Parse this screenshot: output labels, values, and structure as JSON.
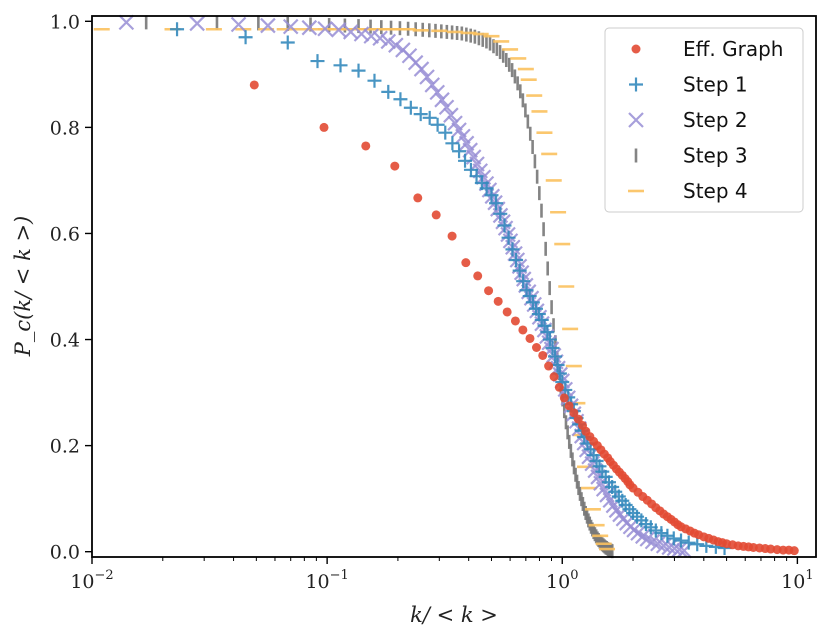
{
  "chart_data": {
    "type": "scatter",
    "title": "",
    "xlabel": "k/ < k >",
    "ylabel": "P_c(k/ < k >)",
    "xscale": "log",
    "xlim": [
      0.01,
      12
    ],
    "ylim": [
      -0.01,
      1.01
    ],
    "x_ticks": [
      0.01,
      0.1,
      1,
      10
    ],
    "x_tick_labels": [
      {
        "base": "10",
        "exp": "−2"
      },
      {
        "base": "10",
        "exp": "−1"
      },
      {
        "base": "10",
        "exp": "0"
      },
      {
        "base": "10",
        "exp": "1"
      }
    ],
    "y_ticks": [
      0.0,
      0.2,
      0.4,
      0.6,
      0.8,
      1.0
    ],
    "y_tick_labels": [
      "0.0",
      "0.2",
      "0.4",
      "0.6",
      "0.8",
      "1.0"
    ],
    "legend_position": "top-right",
    "series": [
      {
        "name": "Eff. Graph",
        "marker": "circle",
        "color": "#e24a33",
        "x": [
          0.049,
          0.097,
          0.146,
          0.194,
          0.243,
          0.291,
          0.34,
          0.389,
          0.437,
          0.486,
          0.534,
          0.583,
          0.632,
          0.68,
          0.729,
          0.777,
          0.826,
          0.875,
          0.923,
          0.972,
          1.02,
          1.07,
          1.12,
          1.17,
          1.22,
          1.26,
          1.31,
          1.36,
          1.41,
          1.46,
          1.51,
          1.56,
          1.6,
          1.65,
          1.7,
          1.75,
          1.8,
          1.85,
          1.9,
          1.94,
          2.0,
          2.1,
          2.2,
          2.3,
          2.4,
          2.5,
          2.6,
          2.7,
          2.8,
          2.9,
          3.0,
          3.1,
          3.2,
          3.35,
          3.5,
          3.65,
          3.8,
          4.0,
          4.2,
          4.4,
          4.6,
          4.8,
          5.0,
          5.3,
          5.6,
          5.9,
          6.2,
          6.5,
          6.9,
          7.3,
          7.7,
          8.2,
          8.7,
          9.2,
          9.7
        ],
        "y": [
          0.88,
          0.8,
          0.765,
          0.727,
          0.667,
          0.635,
          0.595,
          0.545,
          0.52,
          0.492,
          0.472,
          0.452,
          0.435,
          0.418,
          0.402,
          0.385,
          0.37,
          0.35,
          0.33,
          0.31,
          0.29,
          0.275,
          0.262,
          0.25,
          0.238,
          0.227,
          0.217,
          0.208,
          0.2,
          0.192,
          0.184,
          0.177,
          0.17,
          0.163,
          0.156,
          0.15,
          0.144,
          0.138,
          0.132,
          0.126,
          0.12,
          0.112,
          0.104,
          0.097,
          0.09,
          0.083,
          0.077,
          0.071,
          0.066,
          0.061,
          0.056,
          0.051,
          0.047,
          0.043,
          0.039,
          0.035,
          0.032,
          0.028,
          0.025,
          0.022,
          0.019,
          0.017,
          0.015,
          0.013,
          0.011,
          0.01,
          0.009,
          0.008,
          0.007,
          0.006,
          0.005,
          0.004,
          0.003,
          0.003,
          0.002
        ]
      },
      {
        "name": "Step 1",
        "marker": "plus",
        "color": "#348abd",
        "x": [
          0.023,
          0.045,
          0.068,
          0.091,
          0.114,
          0.136,
          0.159,
          0.182,
          0.205,
          0.227,
          0.25,
          0.273,
          0.295,
          0.318,
          0.341,
          0.364,
          0.386,
          0.409,
          0.432,
          0.455,
          0.477,
          0.5,
          0.523,
          0.545,
          0.568,
          0.591,
          0.614,
          0.636,
          0.659,
          0.682,
          0.705,
          0.727,
          0.75,
          0.773,
          0.795,
          0.818,
          0.841,
          0.864,
          0.886,
          0.909,
          0.932,
          0.955,
          0.977,
          1.0,
          1.03,
          1.06,
          1.09,
          1.12,
          1.15,
          1.18,
          1.21,
          1.24,
          1.28,
          1.32,
          1.36,
          1.4,
          1.44,
          1.48,
          1.53,
          1.58,
          1.63,
          1.68,
          1.74,
          1.8,
          1.86,
          1.93,
          2.0,
          2.08,
          2.17,
          2.27,
          2.38,
          2.5,
          2.64,
          2.8,
          2.98,
          3.2,
          3.45,
          3.75,
          4.1,
          4.5,
          4.9
        ],
        "y": [
          0.985,
          0.97,
          0.96,
          0.925,
          0.917,
          0.907,
          0.888,
          0.867,
          0.853,
          0.837,
          0.825,
          0.818,
          0.805,
          0.79,
          0.77,
          0.755,
          0.737,
          0.72,
          0.708,
          0.695,
          0.685,
          0.672,
          0.657,
          0.637,
          0.615,
          0.592,
          0.57,
          0.55,
          0.53,
          0.51,
          0.493,
          0.482,
          0.47,
          0.458,
          0.448,
          0.437,
          0.426,
          0.414,
          0.4,
          0.384,
          0.368,
          0.352,
          0.336,
          0.32,
          0.305,
          0.291,
          0.278,
          0.265,
          0.252,
          0.24,
          0.228,
          0.216,
          0.204,
          0.193,
          0.182,
          0.171,
          0.161,
          0.151,
          0.141,
          0.131,
          0.122,
          0.113,
          0.104,
          0.096,
          0.088,
          0.08,
          0.073,
          0.066,
          0.059,
          0.052,
          0.046,
          0.04,
          0.035,
          0.03,
          0.025,
          0.021,
          0.017,
          0.014,
          0.011,
          0.009,
          0.007
        ]
      },
      {
        "name": "Step 2",
        "marker": "x",
        "color": "#988ed5",
        "x": [
          0.014,
          0.028,
          0.042,
          0.056,
          0.07,
          0.084,
          0.098,
          0.112,
          0.126,
          0.14,
          0.154,
          0.168,
          0.182,
          0.196,
          0.21,
          0.224,
          0.238,
          0.252,
          0.266,
          0.28,
          0.294,
          0.308,
          0.322,
          0.336,
          0.35,
          0.364,
          0.378,
          0.392,
          0.406,
          0.42,
          0.434,
          0.448,
          0.462,
          0.476,
          0.49,
          0.504,
          0.518,
          0.532,
          0.546,
          0.56,
          0.574,
          0.588,
          0.602,
          0.616,
          0.63,
          0.644,
          0.658,
          0.672,
          0.686,
          0.7,
          0.72,
          0.74,
          0.76,
          0.78,
          0.8,
          0.82,
          0.84,
          0.86,
          0.88,
          0.9,
          0.92,
          0.94,
          0.96,
          0.98,
          1.0,
          1.03,
          1.06,
          1.09,
          1.12,
          1.15,
          1.18,
          1.21,
          1.24,
          1.27,
          1.3,
          1.34,
          1.38,
          1.42,
          1.46,
          1.5,
          1.55,
          1.6,
          1.65,
          1.7,
          1.76,
          1.82,
          1.88,
          1.95,
          2.02,
          2.1,
          2.2,
          2.3,
          2.42,
          2.55,
          2.7,
          2.85,
          3.0,
          3.15,
          3.3
        ],
        "y": [
          0.998,
          0.996,
          0.994,
          0.992,
          0.99,
          0.988,
          0.986,
          0.984,
          0.98,
          0.976,
          0.972,
          0.968,
          0.962,
          0.955,
          0.946,
          0.935,
          0.922,
          0.91,
          0.895,
          0.88,
          0.866,
          0.852,
          0.838,
          0.823,
          0.808,
          0.795,
          0.783,
          0.77,
          0.757,
          0.744,
          0.731,
          0.718,
          0.706,
          0.694,
          0.682,
          0.67,
          0.658,
          0.646,
          0.634,
          0.622,
          0.61,
          0.598,
          0.586,
          0.574,
          0.562,
          0.55,
          0.538,
          0.526,
          0.514,
          0.502,
          0.49,
          0.478,
          0.466,
          0.454,
          0.442,
          0.43,
          0.418,
          0.406,
          0.394,
          0.382,
          0.37,
          0.358,
          0.346,
          0.334,
          0.322,
          0.306,
          0.29,
          0.275,
          0.26,
          0.246,
          0.232,
          0.218,
          0.205,
          0.192,
          0.179,
          0.166,
          0.153,
          0.141,
          0.129,
          0.118,
          0.107,
          0.097,
          0.087,
          0.078,
          0.07,
          0.062,
          0.054,
          0.047,
          0.041,
          0.035,
          0.029,
          0.024,
          0.019,
          0.015,
          0.011,
          0.008,
          0.006,
          0.004,
          0.002
        ]
      },
      {
        "name": "Step 3",
        "marker": "vline",
        "color": "#777777",
        "x": [
          0.017,
          0.034,
          0.051,
          0.068,
          0.085,
          0.102,
          0.119,
          0.136,
          0.153,
          0.17,
          0.187,
          0.204,
          0.221,
          0.238,
          0.255,
          0.272,
          0.289,
          0.306,
          0.323,
          0.34,
          0.357,
          0.374,
          0.391,
          0.408,
          0.425,
          0.442,
          0.459,
          0.476,
          0.493,
          0.51,
          0.527,
          0.544,
          0.561,
          0.578,
          0.595,
          0.612,
          0.629,
          0.646,
          0.663,
          0.68,
          0.697,
          0.714,
          0.731,
          0.748,
          0.765,
          0.782,
          0.799,
          0.816,
          0.833,
          0.85,
          0.867,
          0.884,
          0.901,
          0.918,
          0.935,
          0.952,
          0.969,
          0.986,
          1.003,
          1.02,
          1.037,
          1.054,
          1.071,
          1.088,
          1.105,
          1.122,
          1.139,
          1.156,
          1.173,
          1.19,
          1.207,
          1.224,
          1.241,
          1.258,
          1.275,
          1.292,
          1.309,
          1.326,
          1.343,
          1.36,
          1.377,
          1.394,
          1.411,
          1.428,
          1.445,
          1.462,
          1.479,
          1.496,
          1.513,
          1.53,
          1.547,
          1.564,
          1.581,
          1.598,
          1.615,
          1.632
        ],
        "y": [
          0.998,
          0.997,
          0.996,
          0.995,
          0.994,
          0.993,
          0.992,
          0.991,
          0.99,
          0.989,
          0.988,
          0.987,
          0.986,
          0.985,
          0.984,
          0.983,
          0.982,
          0.981,
          0.98,
          0.979,
          0.978,
          0.977,
          0.975,
          0.973,
          0.971,
          0.968,
          0.965,
          0.962,
          0.958,
          0.953,
          0.948,
          0.942,
          0.935,
          0.927,
          0.918,
          0.908,
          0.896,
          0.883,
          0.868,
          0.851,
          0.832,
          0.811,
          0.788,
          0.763,
          0.736,
          0.707,
          0.676,
          0.643,
          0.608,
          0.571,
          0.534,
          0.497,
          0.461,
          0.427,
          0.395,
          0.365,
          0.337,
          0.311,
          0.287,
          0.265,
          0.244,
          0.225,
          0.207,
          0.19,
          0.174,
          0.159,
          0.145,
          0.132,
          0.12,
          0.109,
          0.099,
          0.09,
          0.081,
          0.073,
          0.066,
          0.059,
          0.053,
          0.047,
          0.042,
          0.037,
          0.033,
          0.029,
          0.025,
          0.022,
          0.019,
          0.016,
          0.014,
          0.012,
          0.01,
          0.008,
          0.007,
          0.005,
          0.004,
          0.003,
          0.002,
          0.001
        ]
      },
      {
        "name": "Step 4",
        "marker": "hline",
        "color": "#fbc15e",
        "x": [
          0.011,
          0.022,
          0.033,
          0.044,
          0.055,
          0.066,
          0.077,
          0.088,
          0.099,
          0.11,
          0.121,
          0.132,
          0.143,
          0.154,
          0.165,
          0.176,
          0.187,
          0.198,
          0.209,
          0.22,
          0.25,
          0.3,
          0.35,
          0.4,
          0.45,
          0.5,
          0.55,
          0.6,
          0.65,
          0.7,
          0.72,
          0.76,
          0.8,
          0.84,
          0.88,
          0.92,
          0.96,
          1.0,
          1.04,
          1.08,
          1.12,
          1.16,
          1.2,
          1.25,
          1.3,
          1.35,
          1.4,
          1.45,
          1.5,
          1.55
        ],
        "y": [
          0.985,
          0.985,
          0.985,
          0.985,
          0.985,
          0.985,
          0.985,
          0.985,
          0.985,
          0.985,
          0.985,
          0.985,
          0.985,
          0.985,
          0.985,
          0.985,
          0.985,
          0.985,
          0.985,
          0.985,
          0.983,
          0.982,
          0.98,
          0.978,
          0.976,
          0.972,
          0.962,
          0.947,
          0.93,
          0.91,
          0.89,
          0.86,
          0.83,
          0.79,
          0.75,
          0.7,
          0.64,
          0.58,
          0.5,
          0.42,
          0.35,
          0.28,
          0.22,
          0.16,
          0.12,
          0.08,
          0.05,
          0.03,
          0.015,
          0.005
        ]
      }
    ]
  }
}
